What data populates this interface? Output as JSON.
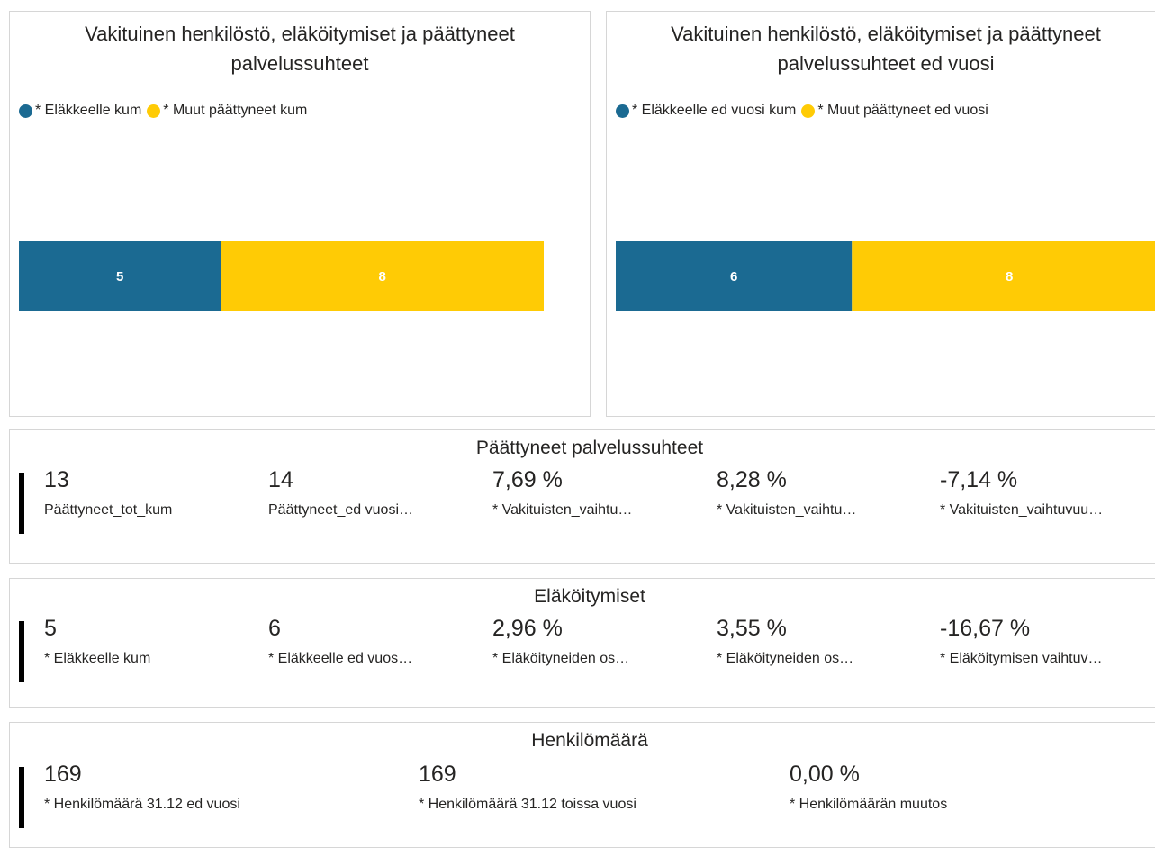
{
  "chart_data": [
    {
      "type": "bar",
      "orientation": "horizontal",
      "stacked": true,
      "title": "Vakituinen henkilöstö, eläköitymiset ja päättyneet palvelussuhteet",
      "categories": [
        null
      ],
      "series": [
        {
          "name": "* Eläkkeelle kum",
          "color": "#1b6a92",
          "values": [
            5
          ]
        },
        {
          "name": "* Muut päättyneet kum",
          "color": "#ffcb05",
          "values": [
            8
          ]
        }
      ],
      "xlim": [
        0,
        13
      ]
    },
    {
      "type": "bar",
      "orientation": "horizontal",
      "stacked": true,
      "title": "Vakituinen henkilöstö, eläköitymiset ja päättyneet palvelussuhteet ed vuosi",
      "categories": [
        null
      ],
      "series": [
        {
          "name": "* Eläkkeelle ed vuosi kum",
          "color": "#1b6a92",
          "values": [
            6
          ]
        },
        {
          "name": "* Muut päättyneet ed vuosi",
          "color": "#ffcb05",
          "values": [
            8
          ]
        }
      ],
      "xlim": [
        0,
        14
      ]
    }
  ],
  "cards": [
    {
      "title": "Päättyneet palvelussuhteet",
      "items": [
        {
          "value": "13",
          "label": "Päättyneet_tot_kum"
        },
        {
          "value": "14",
          "label": "Päättyneet_ed vuosi…"
        },
        {
          "value": "7,69 %",
          "label": "* Vakituisten_vaihtu…"
        },
        {
          "value": "8,28 %",
          "label": "* Vakituisten_vaihtu…"
        },
        {
          "value": "-7,14 %",
          "label": "* Vakituisten_vaihtuvuu…"
        }
      ]
    },
    {
      "title": "Eläköitymiset",
      "items": [
        {
          "value": "5",
          "label": "* Eläkkeelle kum"
        },
        {
          "value": "6",
          "label": "* Eläkkeelle ed vuos…"
        },
        {
          "value": "2,96 %",
          "label": "* Eläköityneiden os…"
        },
        {
          "value": "3,55 %",
          "label": "* Eläköityneiden os…"
        },
        {
          "value": "-16,67 %",
          "label": "* Eläköitymisen vaihtuv…"
        }
      ]
    },
    {
      "title": "Henkilömäärä",
      "items": [
        {
          "value": "169",
          "label": "* Henkilömäärä 31.12 ed vuosi"
        },
        {
          "value": "169",
          "label": "* Henkilömäärä 31.12 toissa vuosi"
        },
        {
          "value": "0,00 %",
          "label": "* Henkilömäärän muutos"
        }
      ]
    }
  ]
}
